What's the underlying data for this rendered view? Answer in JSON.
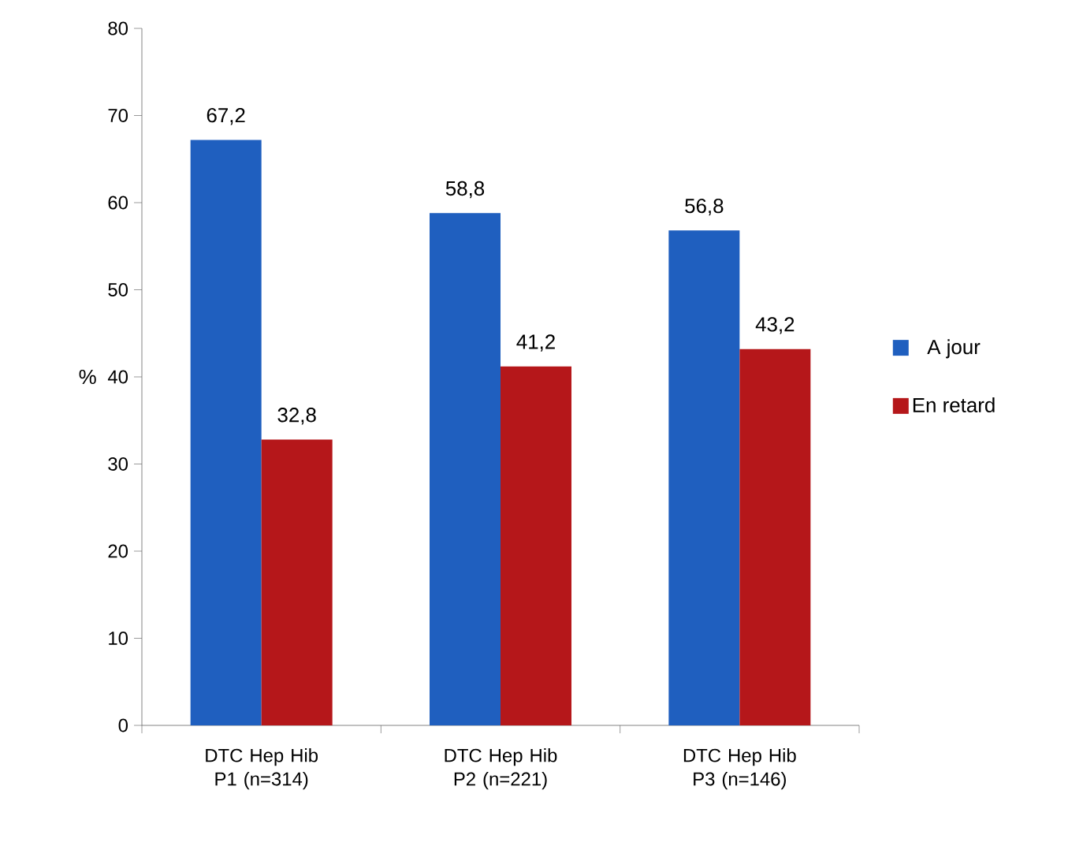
{
  "chart_data": {
    "type": "bar",
    "ylabel": "%",
    "categories": [
      "DTC Hep Hib P1 (n=314)",
      "DTC Hep Hib P2 (n=221)",
      "DTC Hep Hib P3 (n=146)"
    ],
    "series": [
      {
        "name": "A jour",
        "color": "#1f5fbf",
        "values": [
          67.2,
          58.8,
          56.8
        ],
        "value_labels": [
          "67,2",
          "58,8",
          "56,8"
        ]
      },
      {
        "name": "En retard",
        "color": "#b5171a",
        "values": [
          32.8,
          41.2,
          43.2
        ],
        "value_labels": [
          "32,8",
          "41,2",
          "43,2"
        ]
      }
    ],
    "ylim": [
      0,
      80
    ],
    "yticks": [
      0,
      10,
      20,
      30,
      40,
      50,
      60,
      70,
      80
    ],
    "grid": false,
    "legend": "right"
  }
}
